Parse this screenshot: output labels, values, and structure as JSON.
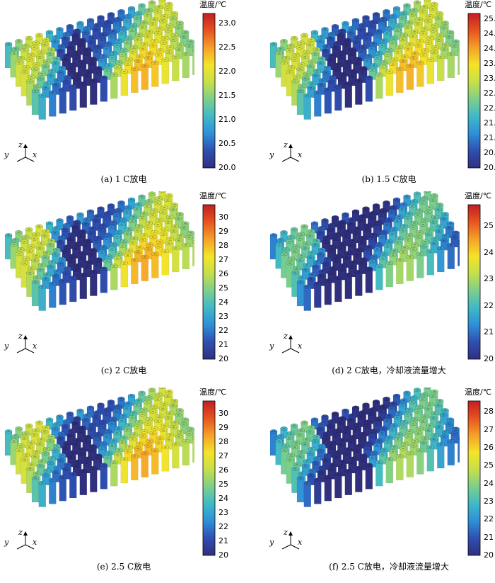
{
  "figure": {
    "panels": [
      {
        "id": "a",
        "caption": "(a) 1 C放电",
        "colorbar": {
          "title": "温度/℃",
          "min": 20.0,
          "max": 23.2,
          "ticks": [
            "23.0",
            "22.5",
            "22.0",
            "21.5",
            "21.0",
            "20.5",
            "20.0"
          ],
          "tick_values": [
            23.0,
            22.5,
            22.0,
            21.5,
            21.0,
            20.5,
            20.0
          ]
        }
      },
      {
        "id": "b",
        "caption": "(b) 1.5 C放电",
        "colorbar": {
          "title": "温度/℃",
          "min": 20.0,
          "max": 25.2,
          "ticks": [
            "25.0",
            "24.5",
            "24.0",
            "23.5",
            "23.0",
            "22.5",
            "22.0",
            "21.5",
            "21.0",
            "20.5",
            "20.0"
          ],
          "tick_values": [
            25.0,
            24.5,
            24.0,
            23.5,
            23.0,
            22.5,
            22.0,
            21.5,
            21.0,
            20.5,
            20.0
          ]
        }
      },
      {
        "id": "c",
        "caption": "(c) 2 C放电",
        "colorbar": {
          "title": "温度/℃",
          "min": 20,
          "max": 30.9,
          "ticks": [
            "30",
            "29",
            "28",
            "27",
            "26",
            "25",
            "24",
            "23",
            "22",
            "21",
            "20"
          ],
          "tick_values": [
            30,
            29,
            28,
            27,
            26,
            25,
            24,
            23,
            22,
            21,
            20
          ]
        }
      },
      {
        "id": "d",
        "caption": "(d) 2 C放电，冷却液流量增大",
        "colorbar": {
          "title": "温度/℃",
          "min": 20,
          "max": 25.8,
          "ticks": [
            "24",
            "22",
            "20"
          ],
          "tick_values": [
            24,
            22,
            20
          ],
          "extra_ticks": [
            "25",
            "23",
            "21"
          ],
          "extra_tick_values": [
            25,
            23,
            21
          ]
        }
      },
      {
        "id": "e",
        "caption": "(e) 2.5 C放电",
        "colorbar": {
          "title": "温度/℃",
          "min": 20,
          "max": 30.9,
          "ticks": [
            "30",
            "29",
            "28",
            "27",
            "26",
            "25",
            "24",
            "23",
            "22",
            "21",
            "20"
          ],
          "tick_values": [
            30,
            29,
            28,
            27,
            26,
            25,
            24,
            23,
            22,
            21,
            20
          ]
        }
      },
      {
        "id": "f",
        "caption": "(f) 2.5 C放电，冷却液流量增大",
        "colorbar": {
          "title": "温度/℃",
          "min": 20,
          "max": 28.6,
          "ticks": [
            "28",
            "27",
            "26",
            "25",
            "24",
            "23",
            "22",
            "21",
            "20"
          ],
          "tick_values": [
            28,
            27,
            26,
            25,
            24,
            23,
            22,
            21,
            20
          ]
        }
      }
    ],
    "axes_labels": {
      "y": "y",
      "z": "z",
      "x": "x"
    },
    "colormap": [
      "#30307f",
      "#2f4fb0",
      "#2f8fd8",
      "#3fb9c8",
      "#7ccf8c",
      "#c6df4a",
      "#f4e42a",
      "#f6a02a",
      "#e65420",
      "#c21e22"
    ]
  }
}
